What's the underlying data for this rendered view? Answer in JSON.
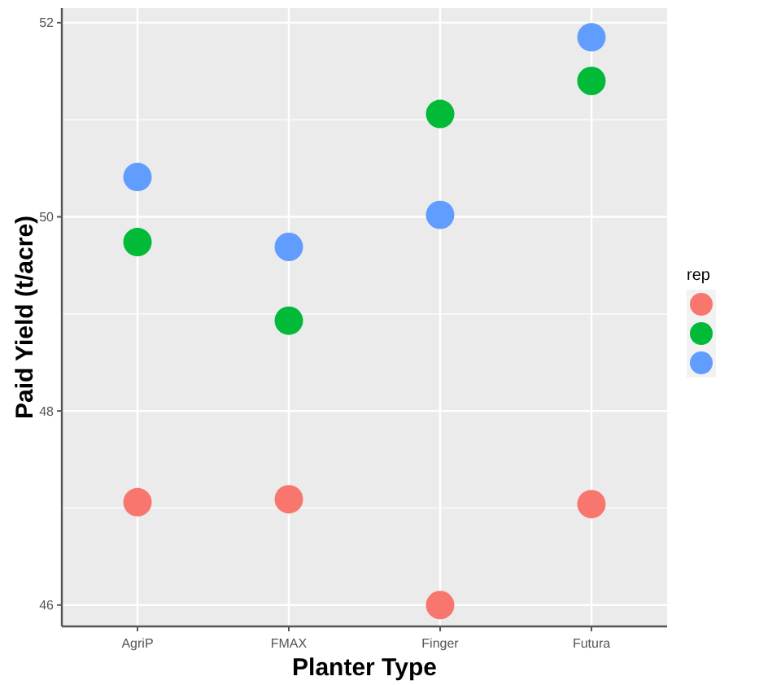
{
  "chart_data": {
    "type": "scatter",
    "xlabel": "Planter Type",
    "ylabel": "Paid Yield (t/acre)",
    "legend_title": "rep",
    "categories": [
      "AgriP",
      "FMAX",
      "Finger",
      "Futura"
    ],
    "series": [
      {
        "color": "#f8766d",
        "values": [
          47.06,
          47.09,
          46.0,
          47.04
        ]
      },
      {
        "color": "#00ba38",
        "values": [
          49.74,
          48.93,
          51.06,
          51.4
        ]
      },
      {
        "color": "#619cff",
        "values": [
          50.41,
          49.69,
          50.02,
          51.85
        ]
      }
    ],
    "ylim": [
      45.78,
      52.15
    ],
    "yticks": [
      46,
      {
        "value": 47,
        "label": null
      },
      48,
      {
        "value": 49,
        "label": null
      },
      50,
      {
        "value": 51,
        "label": null
      },
      52
    ],
    "grid": true,
    "marker": "circle"
  }
}
